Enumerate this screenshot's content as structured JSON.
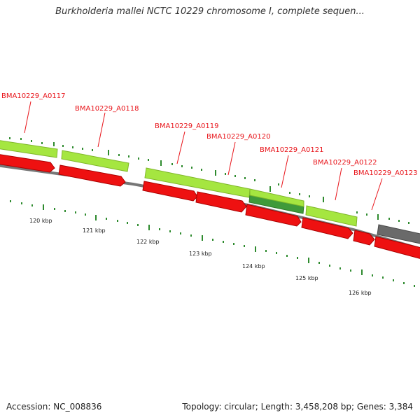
{
  "title": "Burkholderia mallei NCTC 10229 chromosome I, complete sequen...",
  "footer": {
    "accession": "Accession: NC_008836",
    "summary": "Topology: circular; Length: 3,458,208 bp; Genes: 3,384"
  },
  "colors": {
    "label": "#e8141a",
    "gene_red": "#ee1111",
    "gene_green": "#a5e640",
    "gene_darkgreen": "#3f9a3a",
    "gene_gray": "#6a6a6a",
    "backbone": "#777777",
    "tick": "#2e8b2e"
  },
  "gene_labels": [
    "BMA10229_A0117",
    "BMA10229_A0118",
    "BMA10229_A0119",
    "BMA10229_A0120",
    "BMA10229_A0121",
    "BMA10229_A0122",
    "BMA10229_A0123"
  ],
  "kbp_labels": [
    "120 kbp",
    "121 kbp",
    "122 kbp",
    "123 kbp",
    "124 kbp",
    "125 kbp",
    "126 kbp"
  ]
}
